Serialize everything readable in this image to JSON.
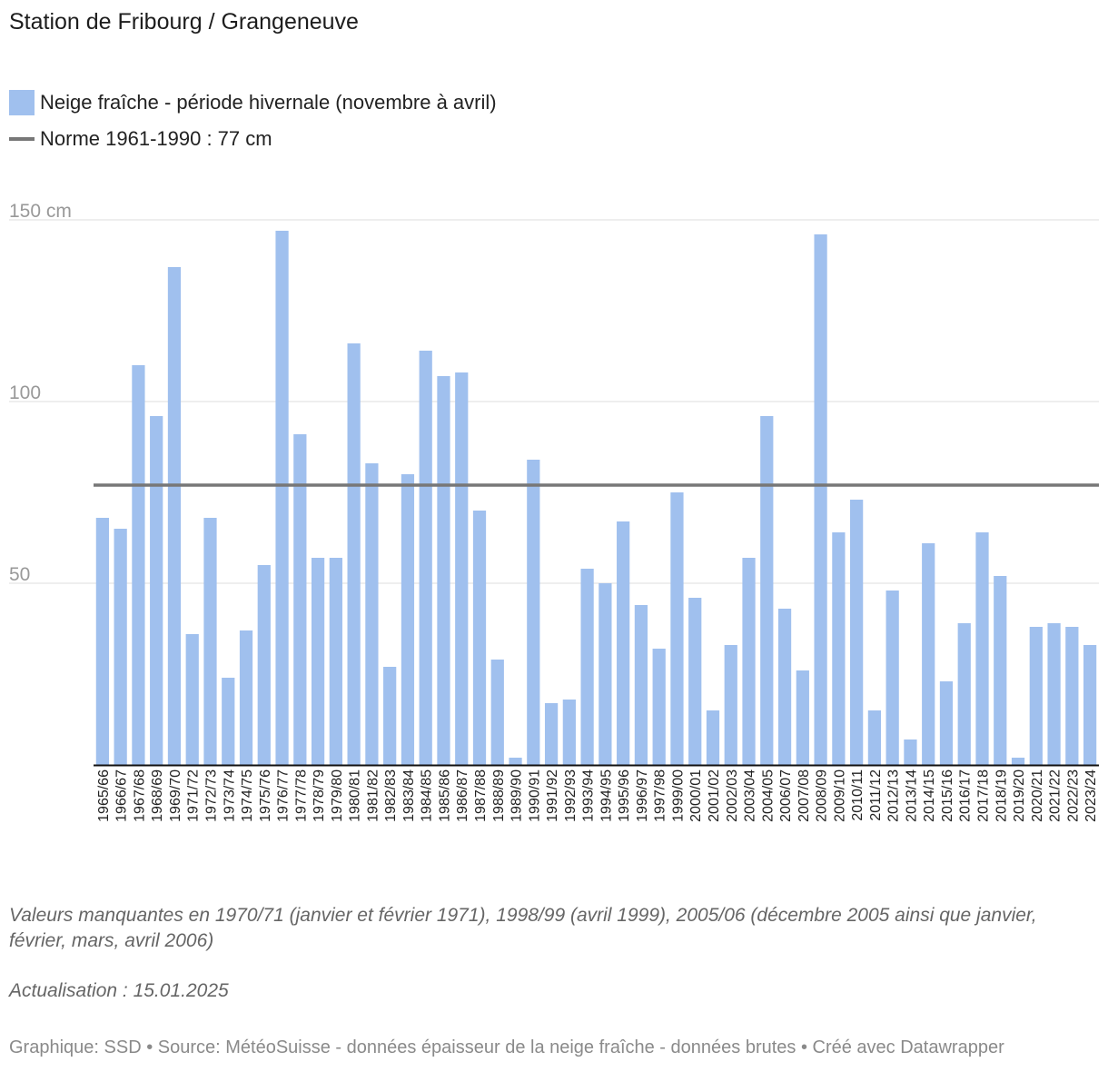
{
  "title": "Station de Fribourg / Grangeneuve",
  "legend": {
    "bars_label": "Neige fraîche - période hivernale (novembre à avril)",
    "line_label": "Norme 1961-1990 : 77 cm"
  },
  "colors": {
    "bar": "#a0c0ee",
    "norm_line": "#777777",
    "grid": "#dddddd",
    "tick_text": "#999999"
  },
  "chart_data": {
    "type": "bar",
    "title": "Station de Fribourg / Grangeneuve",
    "xlabel": "",
    "ylabel": "",
    "ylim": [
      0,
      150
    ],
    "yticks": [
      {
        "value": 50,
        "label": "50"
      },
      {
        "value": 100,
        "label": "100"
      },
      {
        "value": 150,
        "label": "150 cm"
      }
    ],
    "categories": [
      "1965/66",
      "1966/67",
      "1967/68",
      "1968/69",
      "1969/70",
      "1971/72",
      "1972/73",
      "1973/74",
      "1974/75",
      "1975/76",
      "1976/77",
      "1977/78",
      "1978/79",
      "1979/80",
      "1980/81",
      "1981/82",
      "1982/83",
      "1983/84",
      "1984/85",
      "1985/86",
      "1986/87",
      "1987/88",
      "1988/89",
      "1989/90",
      "1990/91",
      "1991/92",
      "1992/93",
      "1993/94",
      "1994/95",
      "1995/96",
      "1996/97",
      "1997/98",
      "1999/00",
      "2000/01",
      "2001/02",
      "2002/03",
      "2003/04",
      "2004/05",
      "2006/07",
      "2007/08",
      "2008/09",
      "2009/10",
      "2010/11",
      "2011/12",
      "2012/13",
      "2013/14",
      "2014/15",
      "2015/16",
      "2016/17",
      "2017/18",
      "2018/19",
      "2019/20",
      "2020/21",
      "2021/22",
      "2022/23",
      "2023/24"
    ],
    "series": [
      {
        "name": "Neige fraîche - période hivernale (novembre à avril)",
        "values": [
          68,
          65,
          110,
          96,
          137,
          36,
          68,
          24,
          37,
          55,
          147,
          91,
          57,
          57,
          116,
          83,
          27,
          80,
          114,
          107,
          108,
          70,
          29,
          2,
          84,
          17,
          18,
          54,
          50,
          67,
          44,
          32,
          75,
          46,
          15,
          33,
          57,
          96,
          43,
          26,
          146,
          64,
          73,
          15,
          48,
          7,
          61,
          23,
          39,
          64,
          52,
          2,
          38,
          39,
          38,
          33
        ]
      }
    ],
    "reference_line": {
      "name": "Norme 1961-1990 : 77 cm",
      "value": 77
    }
  },
  "notes": {
    "missing": "Valeurs manquantes en 1970/71 (janvier et février 1971), 1998/99 (avril 1999), 2005/06 (décembre 2005 ainsi que janvier, février, mars, avril 2006)",
    "update": "Actualisation : 15.01.2025"
  },
  "footer": "Graphique: SSD • Source: MétéoSuisse - données épaisseur de la neige fraîche - données brutes • Créé avec Datawrapper"
}
